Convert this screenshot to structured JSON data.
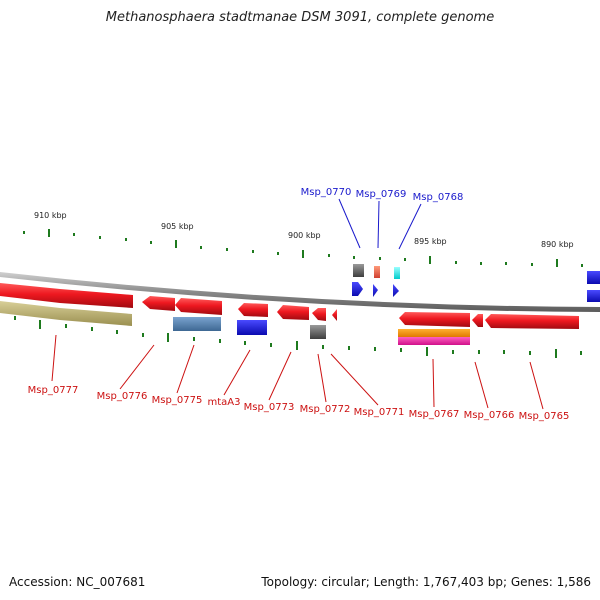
{
  "title": "Methanosphaera stadtmanae DSM 3091, complete genome",
  "footer": {
    "accession": "Accession: NC_007681",
    "topology": "Topology: circular",
    "length": "Length: 1,767,403 bp",
    "genes": "Genes: 1,586"
  },
  "scale_labels": [
    "910 kbp",
    "905 kbp",
    "900 kbp",
    "895 kbp",
    "890 kbp"
  ],
  "forward_strand_labels": [
    "Msp_0770",
    "Msp_0769",
    "Msp_0768"
  ],
  "reverse_strand_labels": [
    "Msp_0777",
    "Msp_0776",
    "Msp_0775",
    "mtaA3",
    "Msp_0773",
    "Msp_0772",
    "Msp_0771",
    "Msp_0767",
    "Msp_0766",
    "Msp_0765"
  ],
  "colors": {
    "forward_label": "#1a1acc",
    "reverse_label": "#cc1111",
    "gene_red": "#e8141e",
    "backbone": "#9a9a9a",
    "tick": "#1e7a1e"
  }
}
